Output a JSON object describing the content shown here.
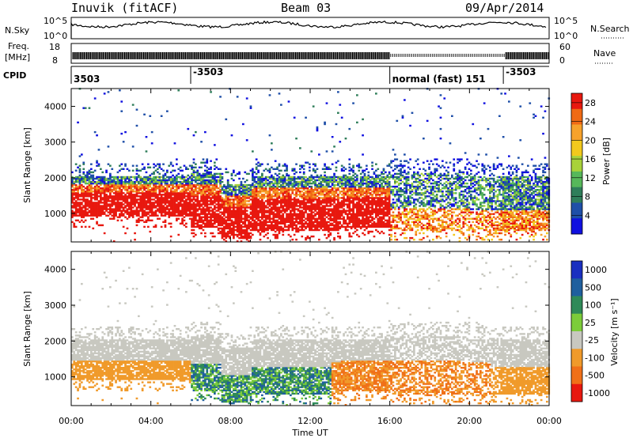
{
  "header": {
    "station": "Inuvik (fitACF)",
    "beam": "Beam 03",
    "date": "09/Apr/2014"
  },
  "top_panels": {
    "nsky_label": "N.Sky",
    "nsky_ticks": [
      "10^5",
      "10^0"
    ],
    "nsearch_label": "N.Search",
    "freq_label_1": "Freq.",
    "freq_label_2": "[MHz]",
    "freq_ticks": [
      "18",
      "8"
    ],
    "nave_label": "Nave",
    "nave_ticks": [
      "60",
      "0"
    ],
    "cpid_label": "CPID",
    "cpid_entries": [
      {
        "hour": 0.0,
        "label": "3503"
      },
      {
        "hour": 6.0,
        "label": "-3503"
      },
      {
        "hour": 16.0,
        "label": "normal (fast) 151"
      },
      {
        "hour": 21.7,
        "label": "-3503"
      }
    ]
  },
  "chart_data": [
    {
      "type": "heatmap",
      "title": "",
      "quantity": "Power",
      "xlabel": "",
      "ylabel": "Slant Range [km]",
      "x_unit": "hours UT",
      "xlim": [
        0,
        24
      ],
      "ylim": [
        200,
        4500
      ],
      "yticks": [
        1000,
        2000,
        3000,
        4000
      ],
      "colorbar": {
        "label": "Power [dB]",
        "ticks": [
          4,
          8,
          12,
          16,
          20,
          24,
          28
        ],
        "range": [
          0,
          30
        ],
        "colors": [
          "#1010e0",
          "#1f4fa8",
          "#2f7e5a",
          "#57b85a",
          "#a8d23a",
          "#f2c91d",
          "#f7a22b",
          "#f06a14",
          "#e8180f"
        ]
      },
      "data_region": {
        "range_lower_km": 200,
        "range_upper_km": 2200,
        "dominant_hours": [
          0,
          16
        ]
      }
    },
    {
      "type": "heatmap",
      "title": "",
      "quantity": "Velocity",
      "xlabel": "Time UT",
      "ylabel": "Slant Range [km]",
      "x_unit": "hours UT",
      "xlim": [
        0,
        24
      ],
      "ylim": [
        200,
        4500
      ],
      "yticks": [
        1000,
        2000,
        3000,
        4000
      ],
      "xticks": [
        "00:00",
        "04:00",
        "08:00",
        "12:00",
        "16:00",
        "20:00",
        "00:00"
      ],
      "colorbar": {
        "label": "Velocity [m s⁻¹]",
        "ticks": [
          "1000",
          "500",
          "100",
          "25",
          "-25",
          "-100",
          "-500",
          "-1000"
        ],
        "colors": [
          "#1a2fc0",
          "#1f5f9e",
          "#2f8a58",
          "#7ccc3a",
          "#c8c8c0",
          "#f09a2a",
          "#f07018",
          "#e8180f"
        ]
      }
    }
  ]
}
